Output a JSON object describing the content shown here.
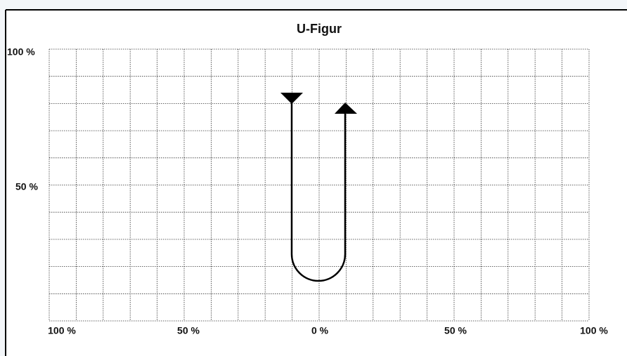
{
  "title": "U-Figur",
  "y_labels": [
    "100 %",
    "50 %"
  ],
  "x_labels": [
    "100 %",
    "50 %",
    "0 %",
    "50 %",
    "100 %"
  ]
}
